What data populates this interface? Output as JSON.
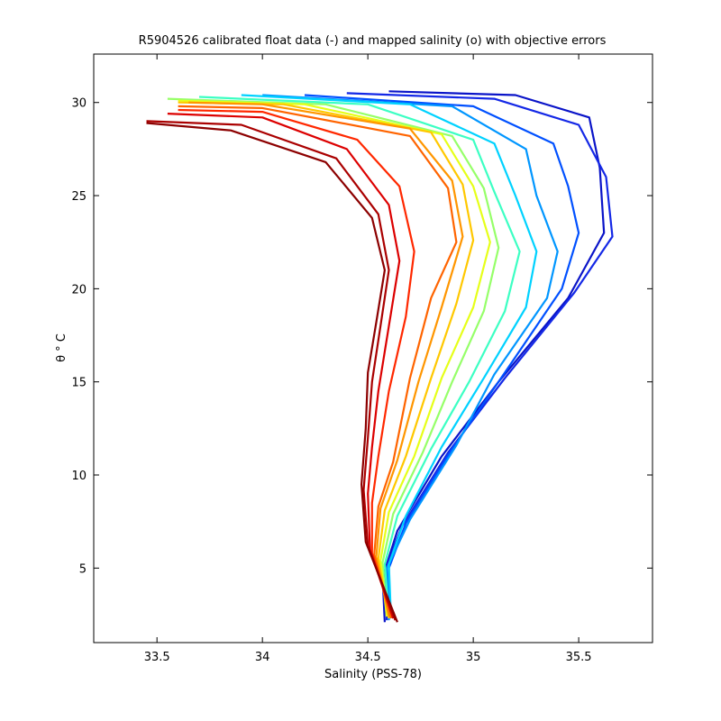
{
  "chart_data": {
    "type": "line",
    "title": "R5904526 calibrated float data (-) and mapped salinity (o) with objective errors",
    "xlabel": "Salinity (PSS-78)",
    "ylabel": "θ ° C",
    "xlim": [
      33.2,
      35.85
    ],
    "ylim": [
      1.0,
      32.6
    ],
    "xticks": [
      33.5,
      34,
      34.5,
      35,
      35.5
    ],
    "xtick_labels": [
      "33.5",
      "34",
      "34.5",
      "35",
      "35.5"
    ],
    "yticks": [
      5,
      10,
      15,
      20,
      25,
      30
    ],
    "ytick_labels": [
      "5",
      "10",
      "15",
      "20",
      "25",
      "30"
    ],
    "grid": false,
    "legend": "none",
    "colormap": "jet (profile index, early = blue, late = dark red)",
    "colors": [
      "#00008f",
      "#0000ff",
      "#007fff",
      "#00ffff",
      "#7fff7f",
      "#ffff00",
      "#ff7f00",
      "#ff0000",
      "#7f0000"
    ],
    "series": [
      {
        "color": "#0a14c8",
        "points": [
          [
            34.58,
            2.1
          ],
          [
            34.57,
            4.5
          ],
          [
            34.64,
            7.0
          ],
          [
            34.85,
            11.0
          ],
          [
            35.12,
            15.0
          ],
          [
            35.45,
            19.5
          ],
          [
            35.62,
            23.0
          ],
          [
            35.6,
            26.5
          ],
          [
            35.55,
            29.2
          ],
          [
            35.2,
            30.4
          ],
          [
            34.6,
            30.6
          ]
        ]
      },
      {
        "color": "#1428e6",
        "points": [
          [
            34.59,
            2.2
          ],
          [
            34.58,
            4.8
          ],
          [
            34.66,
            7.2
          ],
          [
            34.88,
            11.2
          ],
          [
            35.15,
            15.2
          ],
          [
            35.48,
            19.8
          ],
          [
            35.66,
            22.8
          ],
          [
            35.63,
            26.0
          ],
          [
            35.5,
            28.8
          ],
          [
            35.1,
            30.2
          ],
          [
            34.4,
            30.5
          ]
        ]
      },
      {
        "color": "#0050ff",
        "points": [
          [
            34.6,
            2.3
          ],
          [
            34.6,
            5.0
          ],
          [
            34.68,
            7.4
          ],
          [
            34.9,
            11.4
          ],
          [
            35.15,
            15.5
          ],
          [
            35.42,
            20.0
          ],
          [
            35.5,
            23.0
          ],
          [
            35.45,
            25.5
          ],
          [
            35.38,
            27.8
          ],
          [
            35.0,
            29.8
          ],
          [
            34.2,
            30.4
          ]
        ]
      },
      {
        "color": "#0096ff",
        "points": [
          [
            34.6,
            2.2
          ],
          [
            34.59,
            5.0
          ],
          [
            34.7,
            7.6
          ],
          [
            34.92,
            11.6
          ],
          [
            35.1,
            15.4
          ],
          [
            35.35,
            19.5
          ],
          [
            35.4,
            22.0
          ],
          [
            35.3,
            25.0
          ],
          [
            35.25,
            27.5
          ],
          [
            34.9,
            29.8
          ],
          [
            34.0,
            30.4
          ]
        ]
      },
      {
        "color": "#00d2ff",
        "points": [
          [
            34.61,
            2.3
          ],
          [
            34.6,
            5.2
          ],
          [
            34.68,
            7.8
          ],
          [
            34.85,
            11.5
          ],
          [
            35.05,
            15.2
          ],
          [
            35.25,
            19.0
          ],
          [
            35.3,
            22.0
          ],
          [
            35.2,
            25.0
          ],
          [
            35.1,
            27.8
          ],
          [
            34.7,
            29.9
          ],
          [
            33.9,
            30.4
          ]
        ]
      },
      {
        "color": "#3cffc3",
        "points": [
          [
            34.6,
            2.4
          ],
          [
            34.58,
            5.2
          ],
          [
            34.64,
            7.8
          ],
          [
            34.8,
            11.4
          ],
          [
            34.98,
            15.0
          ],
          [
            35.15,
            18.8
          ],
          [
            35.22,
            22.0
          ],
          [
            35.1,
            25.2
          ],
          [
            35.0,
            28.0
          ],
          [
            34.5,
            29.9
          ],
          [
            33.7,
            30.3
          ]
        ]
      },
      {
        "color": "#96ff69",
        "points": [
          [
            34.59,
            2.4
          ],
          [
            34.57,
            5.3
          ],
          [
            34.62,
            7.9
          ],
          [
            34.76,
            11.2
          ],
          [
            34.9,
            15.0
          ],
          [
            35.05,
            18.8
          ],
          [
            35.12,
            22.2
          ],
          [
            35.05,
            25.4
          ],
          [
            34.9,
            28.2
          ],
          [
            34.3,
            29.9
          ],
          [
            33.55,
            30.2
          ]
        ]
      },
      {
        "color": "#e6ff19",
        "points": [
          [
            34.59,
            2.4
          ],
          [
            34.56,
            5.4
          ],
          [
            34.6,
            8.0
          ],
          [
            34.72,
            11.0
          ],
          [
            34.85,
            15.2
          ],
          [
            35.0,
            19.0
          ],
          [
            35.08,
            22.5
          ],
          [
            35.0,
            25.5
          ],
          [
            34.85,
            28.3
          ],
          [
            34.2,
            29.9
          ],
          [
            33.6,
            30.1
          ]
        ]
      },
      {
        "color": "#ffc800",
        "points": [
          [
            34.6,
            2.3
          ],
          [
            34.55,
            5.5
          ],
          [
            34.58,
            8.1
          ],
          [
            34.68,
            11.0
          ],
          [
            34.8,
            15.2
          ],
          [
            34.92,
            19.2
          ],
          [
            35.0,
            22.6
          ],
          [
            34.95,
            25.6
          ],
          [
            34.8,
            28.4
          ],
          [
            34.1,
            29.9
          ],
          [
            33.6,
            30.0
          ]
        ]
      },
      {
        "color": "#ff9600",
        "points": [
          [
            34.6,
            2.4
          ],
          [
            34.54,
            5.6
          ],
          [
            34.56,
            8.2
          ],
          [
            34.64,
            10.8
          ],
          [
            34.74,
            15.0
          ],
          [
            34.85,
            19.0
          ],
          [
            34.95,
            22.8
          ],
          [
            34.9,
            25.8
          ],
          [
            34.7,
            28.6
          ],
          [
            34.0,
            29.9
          ],
          [
            33.65,
            30.0
          ]
        ]
      },
      {
        "color": "#ff6400",
        "points": [
          [
            34.61,
            2.3
          ],
          [
            34.53,
            5.7
          ],
          [
            34.55,
            8.3
          ],
          [
            34.62,
            10.7
          ],
          [
            34.7,
            15.2
          ],
          [
            34.8,
            19.5
          ],
          [
            34.92,
            22.5
          ],
          [
            34.88,
            25.4
          ],
          [
            34.7,
            28.2
          ],
          [
            34.0,
            29.7
          ],
          [
            33.6,
            29.8
          ]
        ]
      },
      {
        "color": "#ff2800",
        "points": [
          [
            34.62,
            2.4
          ],
          [
            34.52,
            5.8
          ],
          [
            34.52,
            8.5
          ],
          [
            34.55,
            11.0
          ],
          [
            34.6,
            14.5
          ],
          [
            34.68,
            18.5
          ],
          [
            34.72,
            22.0
          ],
          [
            34.65,
            25.5
          ],
          [
            34.45,
            28.0
          ],
          [
            34.0,
            29.5
          ],
          [
            33.6,
            29.6
          ]
        ]
      },
      {
        "color": "#dc0000",
        "points": [
          [
            34.62,
            2.3
          ],
          [
            34.51,
            6.0
          ],
          [
            34.5,
            9.0
          ],
          [
            34.52,
            11.5
          ],
          [
            34.55,
            14.5
          ],
          [
            34.6,
            18.0
          ],
          [
            34.65,
            21.5
          ],
          [
            34.6,
            24.5
          ],
          [
            34.4,
            27.5
          ],
          [
            34.0,
            29.2
          ],
          [
            33.55,
            29.4
          ]
        ]
      },
      {
        "color": "#aa0000",
        "points": [
          [
            34.63,
            2.2
          ],
          [
            34.5,
            6.2
          ],
          [
            34.48,
            9.2
          ],
          [
            34.5,
            12.0
          ],
          [
            34.52,
            15.0
          ],
          [
            34.56,
            18.0
          ],
          [
            34.6,
            21.0
          ],
          [
            34.55,
            24.0
          ],
          [
            34.35,
            27.0
          ],
          [
            33.9,
            28.8
          ],
          [
            33.45,
            29.0
          ]
        ]
      },
      {
        "color": "#8c0000",
        "points": [
          [
            34.64,
            2.1
          ],
          [
            34.49,
            6.4
          ],
          [
            34.47,
            9.5
          ],
          [
            34.49,
            12.5
          ],
          [
            34.5,
            15.5
          ],
          [
            34.54,
            18.2
          ],
          [
            34.58,
            21.0
          ],
          [
            34.52,
            23.8
          ],
          [
            34.3,
            26.8
          ],
          [
            33.85,
            28.5
          ],
          [
            33.45,
            28.9
          ]
        ]
      }
    ]
  }
}
